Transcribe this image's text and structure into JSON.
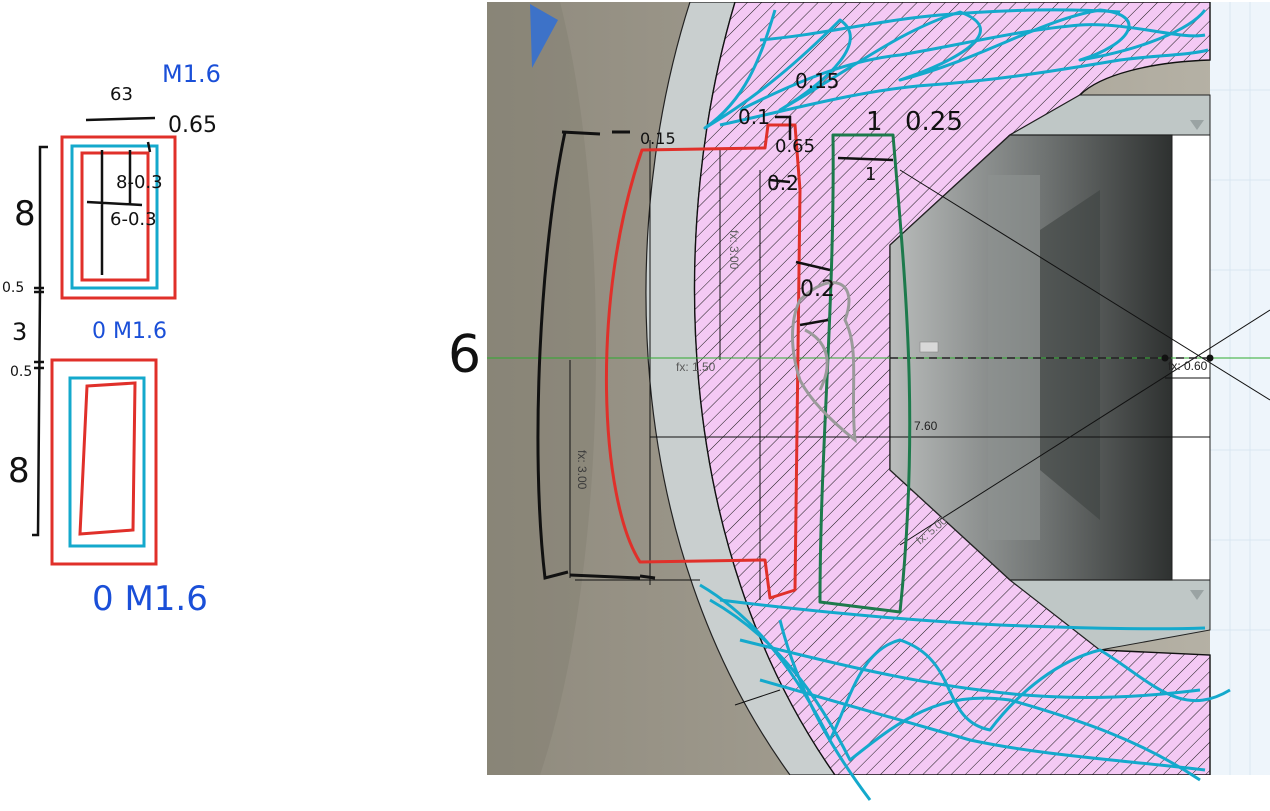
{
  "colors": {
    "red": "#e0302a",
    "cyan": "#14a9cc",
    "black": "#111111",
    "blue": "#1a4fd8",
    "green": "#1d7a4c",
    "hatch_fill": "#f4c9f4",
    "cad_bg": "#9d988c",
    "panel": "#eef5fb"
  },
  "left_sketch": {
    "top_label_blue": "M1.6",
    "top_label_black": "63",
    "top_label_065": "0.65",
    "inner_label_1": "8-0.3",
    "inner_label_2": "6-0.3",
    "side_8_top": "8",
    "side_05_a": "0.5",
    "side_3": "3",
    "mid_label_blue": "0 M1.6",
    "side_05_b": "0.5",
    "side_8_bottom": "8",
    "bottom_label_blue": "0 M1.6"
  },
  "cad": {
    "dim_fx_300_upper": "fx: 3.00",
    "dim_fx_150": "fx: 1.50",
    "dim_fx_300_lower": "fx: 3.00",
    "dim_760": "7.60",
    "dim_fx_060": "fx: 0.60",
    "dim_diag": "fx: 5.00"
  },
  "annotations": {
    "label_6": "6",
    "label_015_top": "0.15",
    "label_01": "0.1",
    "label_1": "1",
    "label_025": "0.25",
    "label_015_left": "0.15",
    "label_065": "0.65",
    "label_02_a": "0.2",
    "label_1_green": "1",
    "label_02_b": "0.2"
  }
}
